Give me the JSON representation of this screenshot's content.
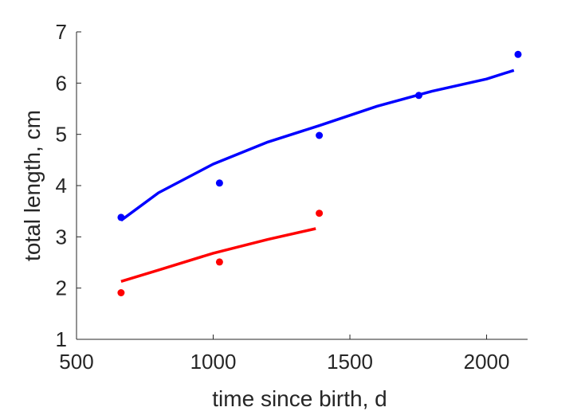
{
  "chart_data": {
    "type": "scatter",
    "title": "",
    "xlabel": "time since birth, d",
    "ylabel": "total length, cm",
    "xlim": [
      500,
      2150
    ],
    "ylim": [
      1,
      7
    ],
    "xticks": [
      500,
      1000,
      1500,
      2000
    ],
    "yticks": [
      1,
      2,
      3,
      4,
      5,
      6,
      7
    ],
    "grid": false,
    "legend": "none",
    "series": [
      {
        "color": "#0000ff",
        "points": {
          "x": [
            663,
            1023,
            1388,
            1752,
            2115
          ],
          "y": [
            3.38,
            4.05,
            4.98,
            5.76,
            6.56
          ]
        },
        "fit": {
          "x": [
            663,
            800,
            1000,
            1200,
            1388,
            1600,
            1800,
            2000,
            2100
          ],
          "y": [
            3.32,
            3.86,
            4.42,
            4.85,
            5.17,
            5.55,
            5.84,
            6.08,
            6.25
          ]
        }
      },
      {
        "color": "#ff0000",
        "points": {
          "x": [
            663,
            1023,
            1388
          ],
          "y": [
            1.91,
            2.51,
            3.46
          ]
        },
        "fit": {
          "x": [
            663,
            800,
            1000,
            1200,
            1375
          ],
          "y": [
            2.13,
            2.35,
            2.68,
            2.95,
            3.16
          ]
        }
      }
    ]
  }
}
